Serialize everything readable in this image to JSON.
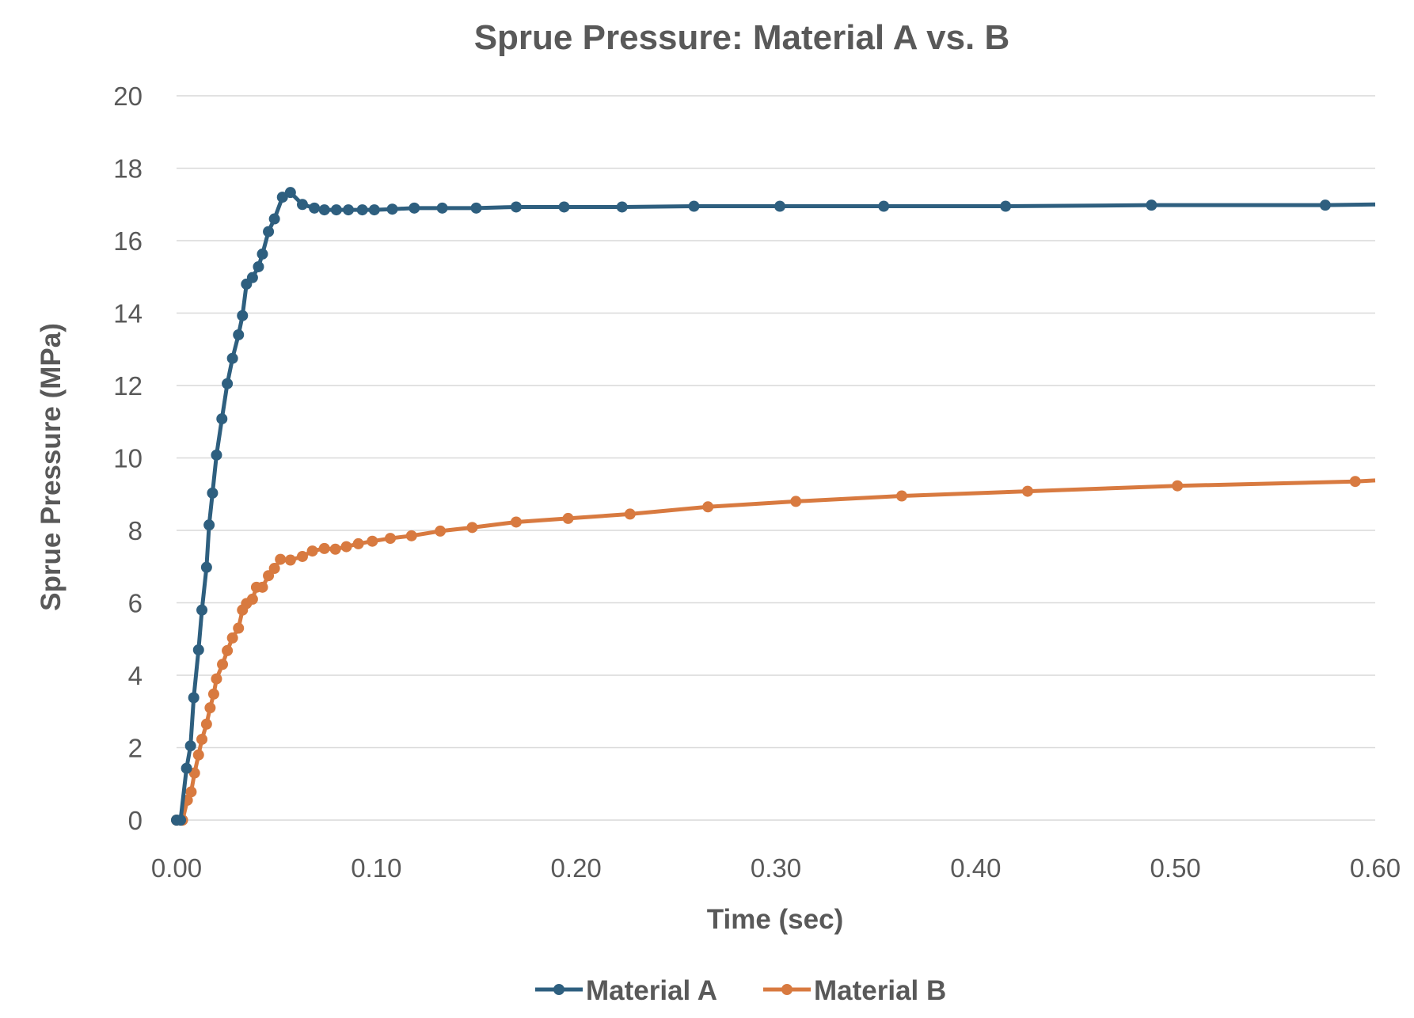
{
  "chart_data": {
    "type": "line",
    "title": "Sprue Pressure: Material A vs. B",
    "xlabel": "Time (sec)",
    "ylabel": "Sprue Pressure (MPa)",
    "xlim": [
      0,
      0.6
    ],
    "ylim": [
      0,
      20
    ],
    "xticks": [
      "0.00",
      "0.10",
      "0.20",
      "0.30",
      "0.40",
      "0.50",
      "0.60"
    ],
    "yticks": [
      "0",
      "2",
      "4",
      "6",
      "8",
      "10",
      "12",
      "14",
      "16",
      "18",
      "20"
    ],
    "grid": "horizontal",
    "legend_position": "bottom",
    "colors": {
      "Material A": "#2e5f7f",
      "Material B": "#d87a40"
    },
    "series": [
      {
        "name": "Material A",
        "x": [
          0.0,
          0.002,
          0.005,
          0.007,
          0.0086,
          0.011,
          0.0127,
          0.015,
          0.0163,
          0.018,
          0.02,
          0.0227,
          0.0254,
          0.028,
          0.031,
          0.033,
          0.035,
          0.038,
          0.041,
          0.043,
          0.046,
          0.049,
          0.053,
          0.057,
          0.063,
          0.069,
          0.074,
          0.08,
          0.086,
          0.093,
          0.099,
          0.108,
          0.119,
          0.133,
          0.15,
          0.17,
          0.194,
          0.223,
          0.259,
          0.302,
          0.354,
          0.415,
          0.488,
          0.575,
          0.6
        ],
        "y": [
          0,
          0,
          1.43,
          2.05,
          3.38,
          4.7,
          5.8,
          6.98,
          8.15,
          9.03,
          10.08,
          11.08,
          12.05,
          12.75,
          13.4,
          13.93,
          14.8,
          14.98,
          15.28,
          15.63,
          16.25,
          16.6,
          17.2,
          17.33,
          17.0,
          16.9,
          16.85,
          16.85,
          16.85,
          16.85,
          16.85,
          16.87,
          16.9,
          16.9,
          16.9,
          16.93,
          16.93,
          16.93,
          16.95,
          16.95,
          16.95,
          16.95,
          16.98,
          16.98,
          17.0
        ]
      },
      {
        "name": "Material B",
        "x": [
          0.0,
          0.003,
          0.0054,
          0.0073,
          0.009,
          0.011,
          0.0127,
          0.015,
          0.0168,
          0.0186,
          0.02,
          0.023,
          0.0254,
          0.028,
          0.031,
          0.033,
          0.035,
          0.038,
          0.04,
          0.043,
          0.046,
          0.049,
          0.052,
          0.057,
          0.063,
          0.068,
          0.074,
          0.0795,
          0.085,
          0.091,
          0.098,
          0.107,
          0.1176,
          0.132,
          0.148,
          0.17,
          0.196,
          0.227,
          0.266,
          0.31,
          0.363,
          0.426,
          0.501,
          0.59,
          0.6
        ],
        "y": [
          0,
          0,
          0.55,
          0.78,
          1.3,
          1.8,
          2.23,
          2.65,
          3.1,
          3.48,
          3.9,
          4.3,
          4.68,
          5.03,
          5.3,
          5.8,
          5.98,
          6.1,
          6.43,
          6.43,
          6.75,
          6.95,
          7.2,
          7.18,
          7.28,
          7.43,
          7.5,
          7.48,
          7.55,
          7.63,
          7.7,
          7.78,
          7.85,
          7.98,
          8.08,
          8.23,
          8.33,
          8.45,
          8.65,
          8.8,
          8.95,
          9.08,
          9.23,
          9.35,
          9.38
        ]
      }
    ]
  }
}
